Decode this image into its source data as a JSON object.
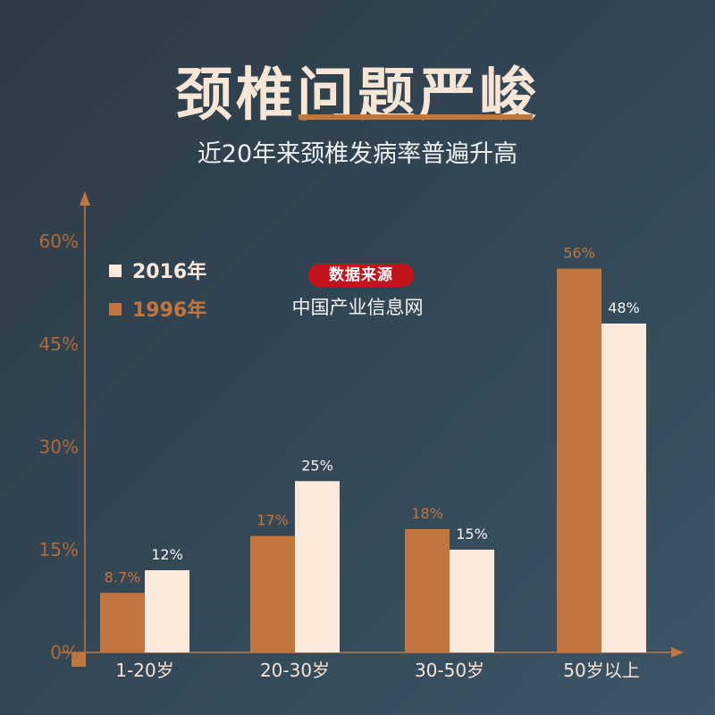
{
  "title": "颈椎问题严峻",
  "subtitle": "近20年来颈椎发病率普遍升高",
  "source": {
    "badge": "数据来源",
    "name": "中国产业信息网"
  },
  "colors": {
    "series_1996": "#c17640",
    "series_2016": "#fbeadc",
    "axis": "#c0763f",
    "badge": "#c4141b"
  },
  "chart_data": {
    "type": "bar",
    "categories": [
      "1-20岁",
      "20-30岁",
      "30-50岁",
      "50岁以上"
    ],
    "series": [
      {
        "name": "1996年",
        "values": [
          8.7,
          17,
          18,
          56
        ],
        "labels": [
          "8.7%",
          "17%",
          "18%",
          "56%"
        ]
      },
      {
        "name": "2016年",
        "values": [
          12,
          25,
          15,
          48
        ],
        "labels": [
          "12%",
          "25%",
          "15%",
          "48%"
        ]
      }
    ],
    "yticks": [
      "0%",
      "15%",
      "30%",
      "45%",
      "60%"
    ],
    "ylim": [
      0,
      60
    ],
    "legend": [
      "2016年",
      "1996年"
    ],
    "legend_position": "top-left",
    "grid": false
  }
}
